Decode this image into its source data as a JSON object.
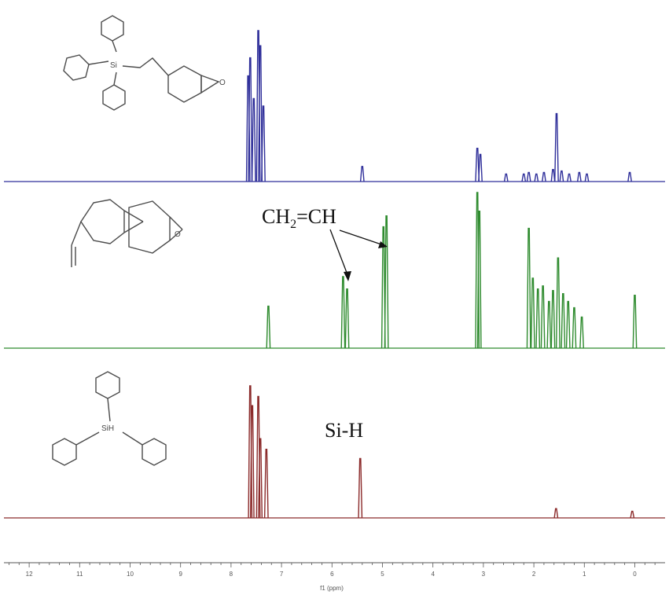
{
  "chart_data": {
    "type": "line",
    "xlabel": "f1 (ppm)",
    "xlim": [
      12.5,
      -0.6
    ],
    "x_reversed": true,
    "ticks": [
      "12",
      "11",
      "10",
      "9",
      "8",
      "7",
      "6",
      "5",
      "4",
      "3",
      "2",
      "1",
      "0"
    ],
    "series": [
      {
        "key": "product",
        "color": "#2f2f9a",
        "peaks": [
          {
            "ppm": 7.66,
            "h": 0.7
          },
          {
            "ppm": 7.62,
            "h": 0.82
          },
          {
            "ppm": 7.55,
            "h": 0.55
          },
          {
            "ppm": 7.46,
            "h": 1.0
          },
          {
            "ppm": 7.42,
            "h": 0.9
          },
          {
            "ppm": 7.36,
            "h": 0.5
          },
          {
            "ppm": 5.4,
            "h": 0.1
          },
          {
            "ppm": 3.12,
            "h": 0.22
          },
          {
            "ppm": 3.06,
            "h": 0.18
          },
          {
            "ppm": 2.55,
            "h": 0.05
          },
          {
            "ppm": 2.2,
            "h": 0.05
          },
          {
            "ppm": 2.1,
            "h": 0.06
          },
          {
            "ppm": 1.95,
            "h": 0.05
          },
          {
            "ppm": 1.8,
            "h": 0.06
          },
          {
            "ppm": 1.62,
            "h": 0.08
          },
          {
            "ppm": 1.55,
            "h": 0.45
          },
          {
            "ppm": 1.45,
            "h": 0.07
          },
          {
            "ppm": 1.3,
            "h": 0.05
          },
          {
            "ppm": 1.1,
            "h": 0.06
          },
          {
            "ppm": 0.95,
            "h": 0.05
          },
          {
            "ppm": 0.1,
            "h": 0.06
          }
        ]
      },
      {
        "key": "vinylcyclohexene_oxide",
        "color": "#2e8b2e",
        "peaks": [
          {
            "ppm": 7.26,
            "h": 0.27
          },
          {
            "ppm": 5.78,
            "h": 0.46
          },
          {
            "ppm": 5.7,
            "h": 0.38
          },
          {
            "ppm": 4.98,
            "h": 0.78
          },
          {
            "ppm": 4.92,
            "h": 0.85
          },
          {
            "ppm": 3.12,
            "h": 1.0
          },
          {
            "ppm": 3.08,
            "h": 0.88
          },
          {
            "ppm": 2.1,
            "h": 0.77
          },
          {
            "ppm": 2.02,
            "h": 0.45
          },
          {
            "ppm": 1.92,
            "h": 0.38
          },
          {
            "ppm": 1.82,
            "h": 0.4
          },
          {
            "ppm": 1.7,
            "h": 0.3
          },
          {
            "ppm": 1.62,
            "h": 0.37
          },
          {
            "ppm": 1.52,
            "h": 0.58
          },
          {
            "ppm": 1.42,
            "h": 0.35
          },
          {
            "ppm": 1.32,
            "h": 0.3
          },
          {
            "ppm": 1.2,
            "h": 0.26
          },
          {
            "ppm": 1.05,
            "h": 0.2
          },
          {
            "ppm": 0.0,
            "h": 0.34
          }
        ]
      },
      {
        "key": "triphenylsilane",
        "color": "#8b2a2a",
        "peaks": [
          {
            "ppm": 7.62,
            "h": 1.0
          },
          {
            "ppm": 7.58,
            "h": 0.85
          },
          {
            "ppm": 7.46,
            "h": 0.92
          },
          {
            "ppm": 7.42,
            "h": 0.6
          },
          {
            "ppm": 7.3,
            "h": 0.52
          },
          {
            "ppm": 5.44,
            "h": 0.45
          },
          {
            "ppm": 1.56,
            "h": 0.07
          },
          {
            "ppm": 0.05,
            "h": 0.05
          }
        ]
      }
    ]
  },
  "annotations": {
    "vinyl_formula": "CH",
    "vinyl_subscript": "2",
    "vinyl_rest": "=CH",
    "sih": "Si-H"
  },
  "molecule_labels": {
    "si_product": "Si",
    "o_product": "O",
    "o_epoxide": "O",
    "sih_label": "SiH"
  }
}
